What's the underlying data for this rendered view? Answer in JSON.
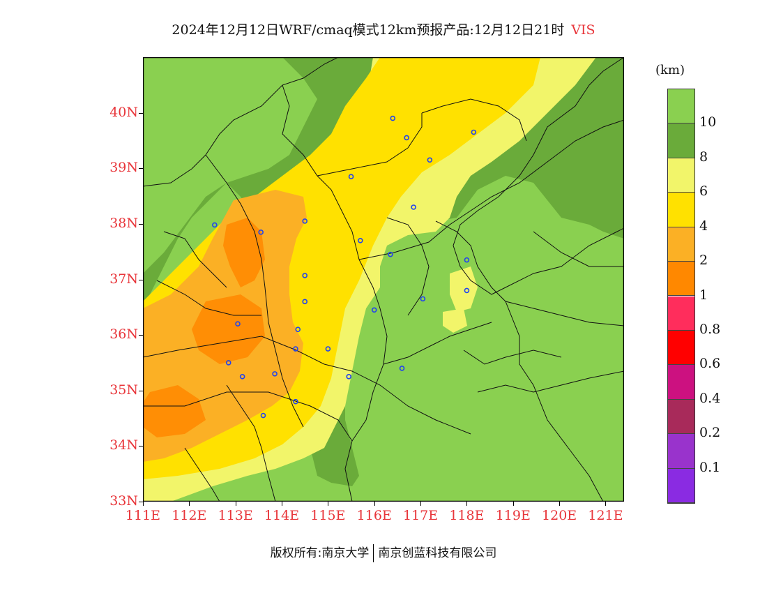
{
  "title": {
    "main": "2024年12月12日WRF/cmaq模式12km预报产品:12月12日21时",
    "variable": "VIS"
  },
  "axes": {
    "lat_labels": [
      "40N",
      "39N",
      "38N",
      "37N",
      "36N",
      "35N",
      "34N",
      "33N"
    ],
    "lat_values": [
      40,
      39,
      38,
      37,
      36,
      35,
      34,
      33
    ],
    "lon_labels": [
      "111E",
      "112E",
      "113E",
      "114E",
      "115E",
      "116E",
      "117E",
      "118E",
      "119E",
      "120E",
      "121E"
    ],
    "lon_values": [
      111,
      112,
      113,
      114,
      115,
      116,
      117,
      118,
      119,
      120,
      121
    ],
    "lon_range": [
      111,
      121.4
    ],
    "lat_range": [
      33,
      41
    ]
  },
  "legend": {
    "unit": "(km)",
    "colors": [
      "#8ad050",
      "#6aab3a",
      "#f2f56a",
      "#ffe100",
      "#fbb025",
      "#ff8800",
      "#ff2d5c",
      "#ff0000",
      "#cc1180",
      "#a82a5a",
      "#9933cc",
      "#8a2be2"
    ],
    "labels": [
      "10",
      "8",
      "6",
      "4",
      "2",
      "1",
      "0.8",
      "0.6",
      "0.4",
      "0.2",
      "0.1"
    ]
  },
  "stations": [
    [
      116.4,
      39.9
    ],
    [
      116.7,
      39.55
    ],
    [
      118.15,
      39.65
    ],
    [
      117.2,
      39.15
    ],
    [
      115.5,
      38.85
    ],
    [
      116.85,
      38.3
    ],
    [
      112.55,
      37.98
    ],
    [
      113.55,
      37.85
    ],
    [
      114.5,
      38.05
    ],
    [
      115.7,
      37.7
    ],
    [
      116.35,
      37.45
    ],
    [
      114.5,
      37.07
    ],
    [
      114.5,
      36.6
    ],
    [
      114.35,
      36.1
    ],
    [
      113.05,
      36.2
    ],
    [
      112.85,
      35.5
    ],
    [
      113.15,
      35.25
    ],
    [
      113.85,
      35.3
    ],
    [
      114.3,
      35.75
    ],
    [
      115.0,
      35.75
    ],
    [
      115.45,
      35.25
    ],
    [
      116.0,
      36.45
    ],
    [
      117.05,
      36.65
    ],
    [
      116.6,
      35.4
    ],
    [
      118.0,
      37.35
    ],
    [
      118.0,
      36.8
    ],
    [
      114.3,
      34.8
    ],
    [
      113.6,
      34.55
    ]
  ],
  "footer": {
    "left": "版权所有:南京大学",
    "right": "南京创蓝科技有限公司"
  }
}
